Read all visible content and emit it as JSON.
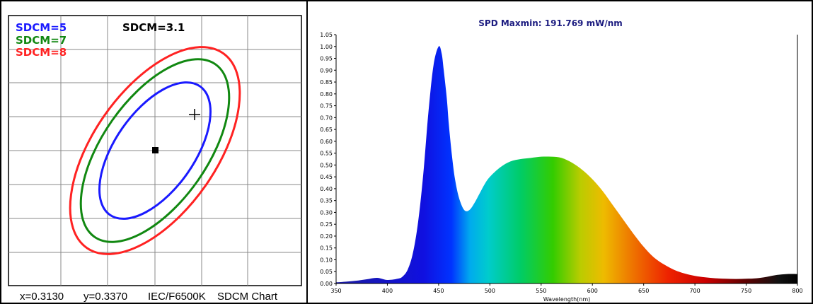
{
  "chart_data": [
    {
      "type": "scatter",
      "title": "",
      "labels": {
        "sdcm_value": "SDCM=3.1",
        "footer_x": "x=0.3130",
        "footer_y": "y=0.3370",
        "footer_std": "IEC/F6500K",
        "footer_chart": "SDCM Chart"
      },
      "legend": [
        {
          "name": "SDCM=5",
          "color": "#1a1aff"
        },
        {
          "name": "SDCM=7",
          "color": "#118811"
        },
        {
          "name": "SDCM=8",
          "color": "#ff2222"
        }
      ],
      "legend_position": "top-left",
      "grid": true,
      "markers": [
        "reference-square",
        "measured-cross"
      ]
    },
    {
      "type": "area",
      "title": "SPD Maxmin: 191.769 mW/nm",
      "xlabel": "Wavelength(nm)",
      "ylabel": "",
      "xlim": [
        350,
        800
      ],
      "ylim": [
        0,
        1.05
      ],
      "xticks": [
        "350",
        "400",
        "450",
        "500",
        "550",
        "600",
        "650",
        "700",
        "750",
        "800"
      ],
      "yticks": [
        "0.00",
        "0.05",
        "0.10",
        "0.15",
        "0.20",
        "0.25",
        "0.30",
        "0.35",
        "0.40",
        "0.45",
        "0.50",
        "0.55",
        "0.60",
        "0.65",
        "0.70",
        "0.75",
        "0.80",
        "0.85",
        "0.90",
        "0.95",
        "1.00",
        "1.05"
      ],
      "grid": false,
      "x": [
        350,
        360,
        370,
        380,
        390,
        400,
        410,
        415,
        420,
        425,
        430,
        435,
        440,
        445,
        450,
        453,
        455,
        458,
        460,
        463,
        466,
        470,
        475,
        480,
        485,
        490,
        495,
        500,
        510,
        520,
        530,
        540,
        550,
        560,
        570,
        580,
        590,
        600,
        610,
        620,
        630,
        640,
        650,
        660,
        670,
        680,
        690,
        700,
        710,
        720,
        730,
        740,
        750,
        760,
        770,
        780,
        790,
        800
      ],
      "y": [
        0.005,
        0.008,
        0.012,
        0.018,
        0.024,
        0.015,
        0.02,
        0.03,
        0.06,
        0.13,
        0.26,
        0.46,
        0.72,
        0.92,
        1.0,
        0.97,
        0.9,
        0.78,
        0.67,
        0.54,
        0.44,
        0.36,
        0.31,
        0.31,
        0.34,
        0.38,
        0.42,
        0.45,
        0.49,
        0.515,
        0.525,
        0.53,
        0.535,
        0.535,
        0.53,
        0.51,
        0.48,
        0.44,
        0.39,
        0.33,
        0.27,
        0.21,
        0.155,
        0.11,
        0.08,
        0.057,
        0.042,
        0.032,
        0.026,
        0.022,
        0.02,
        0.019,
        0.02,
        0.022,
        0.028,
        0.036,
        0.04,
        0.04
      ]
    }
  ]
}
